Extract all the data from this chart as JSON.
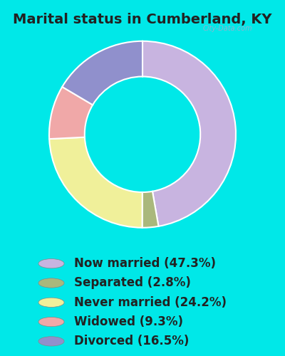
{
  "title": "Marital status in Cumberland, KY",
  "slices": [
    47.3,
    2.8,
    24.2,
    9.3,
    16.5
  ],
  "labels": [
    "Now married (47.3%)",
    "Separated (2.8%)",
    "Never married (24.2%)",
    "Widowed (9.3%)",
    "Divorced (16.5%)"
  ],
  "colors": [
    "#c8b4e0",
    "#aab87c",
    "#f0f09a",
    "#f0a8a8",
    "#9090cc"
  ],
  "background_outer": "#00e8e8",
  "background_chart": "#d8eedd",
  "title_fontsize": 14,
  "legend_fontsize": 12,
  "watermark": "City-Data.com",
  "donut_width": 0.38,
  "startangle": 90
}
